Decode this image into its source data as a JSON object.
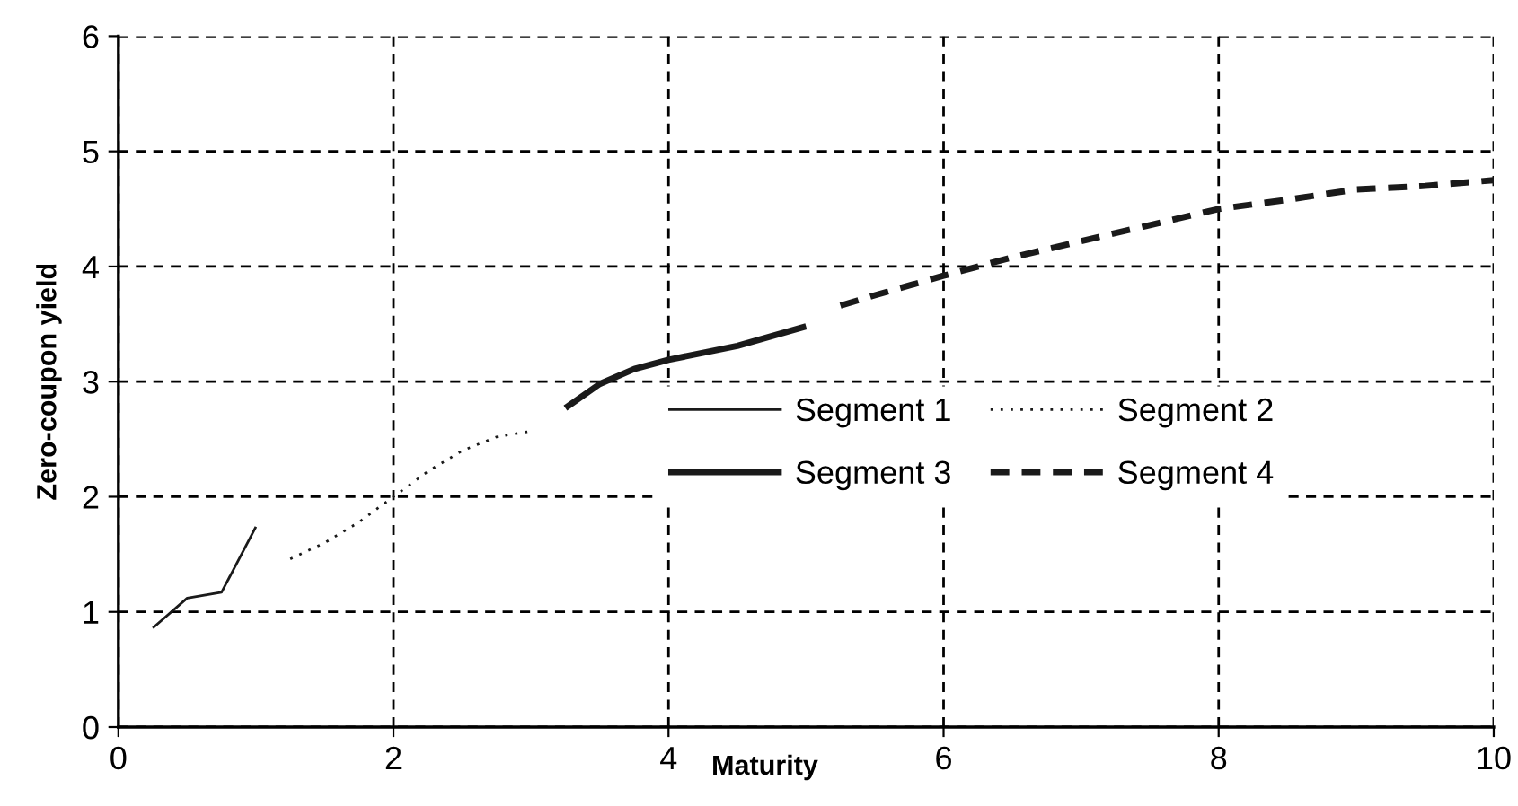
{
  "chart_data": {
    "type": "line",
    "xlabel": "Maturity",
    "ylabel": "Zero-coupon yield",
    "xlim": [
      0,
      10
    ],
    "ylim": [
      0,
      6
    ],
    "xticks": [
      0,
      2,
      4,
      6,
      8,
      10
    ],
    "yticks": [
      0,
      1,
      2,
      3,
      4,
      5,
      6
    ],
    "grid": true,
    "legend": "center",
    "marker": "none",
    "series": [
      {
        "name": "Segment 1",
        "color": "#1a1a1a",
        "line_style": "solid",
        "x": [
          0.25,
          0.5,
          0.75,
          1.0
        ],
        "values": [
          0.86,
          1.12,
          1.17,
          1.74
        ]
      },
      {
        "name": "Segment 2",
        "color": "#1a1a1a",
        "line_style": "dotted",
        "x": [
          1.25,
          1.5,
          1.75,
          2.0,
          2.25,
          2.5,
          2.75,
          3.0
        ],
        "values": [
          1.46,
          1.6,
          1.78,
          2.0,
          2.22,
          2.4,
          2.52,
          2.57
        ]
      },
      {
        "name": "Segment 3",
        "color": "#1a1a1a",
        "line_style": "solid",
        "x": [
          3.25,
          3.5,
          3.75,
          4.0,
          4.5,
          5.0
        ],
        "values": [
          2.77,
          2.98,
          3.11,
          3.19,
          3.31,
          3.48
        ]
      },
      {
        "name": "Segment 4",
        "color": "#1a1a1a",
        "line_style": "dashed",
        "x": [
          5.25,
          5.5,
          6.0,
          6.5,
          7.0,
          7.5,
          8.0,
          8.5,
          9.0,
          9.5,
          10.0
        ],
        "values": [
          3.66,
          3.75,
          3.92,
          4.08,
          4.22,
          4.36,
          4.5,
          4.58,
          4.67,
          4.7,
          4.75
        ]
      }
    ]
  }
}
